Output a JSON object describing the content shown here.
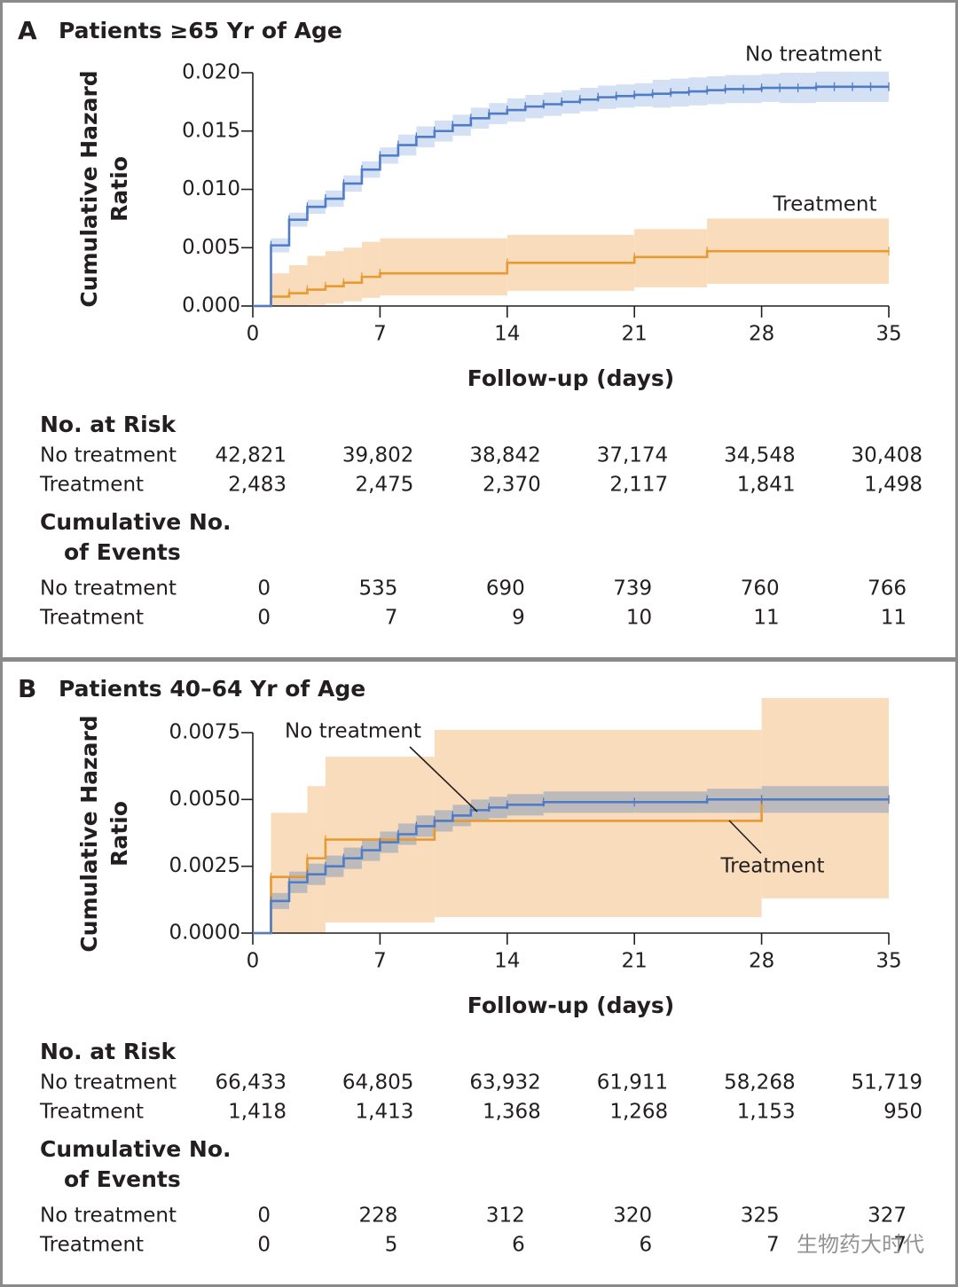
{
  "chart_data": [
    {
      "type": "step",
      "panel": "A",
      "title": "Patients ≥65 Yr of Age",
      "ylabel": [
        "Cumulative Hazard",
        "Ratio"
      ],
      "xlabel": "Follow-up (days)",
      "xlim": [
        0,
        35
      ],
      "xticks": [
        0,
        7,
        14,
        21,
        28,
        35
      ],
      "ylim": [
        0,
        0.02
      ],
      "yticks": [
        {
          "value": 0,
          "label": "0.000"
        },
        0.005,
        {
          "value": 0.01,
          "label": "0.010"
        },
        0.015,
        {
          "value": 0.02,
          "label": "0.020"
        }
      ],
      "series": [
        {
          "name": "No treatment",
          "color": "#4f7cc4",
          "band_color": "#c5d5ef",
          "x": [
            0,
            1,
            2,
            3,
            4,
            5,
            6,
            7,
            8,
            9,
            10,
            11,
            12,
            13,
            14,
            15,
            16,
            17,
            18,
            19,
            20,
            21,
            22,
            23,
            24,
            25,
            26,
            27,
            28,
            29,
            30,
            31,
            32,
            33,
            34,
            35
          ],
          "values": [
            0,
            0.0052,
            0.0074,
            0.0085,
            0.0092,
            0.0105,
            0.0117,
            0.0129,
            0.0138,
            0.0145,
            0.015,
            0.0155,
            0.0161,
            0.0165,
            0.0168,
            0.0171,
            0.0173,
            0.0175,
            0.0177,
            0.0179,
            0.018,
            0.0181,
            0.0182,
            0.0183,
            0.0184,
            0.0185,
            0.0186,
            0.0186,
            0.0187,
            0.0187,
            0.0187,
            0.0188,
            0.0188,
            0.0188,
            0.0188,
            0.0188
          ],
          "lower": [
            0,
            0.0046,
            0.0068,
            0.0079,
            0.0085,
            0.0098,
            0.011,
            0.0122,
            0.0129,
            0.0136,
            0.0141,
            0.0146,
            0.0152,
            0.0156,
            0.0158,
            0.0161,
            0.0163,
            0.0165,
            0.0167,
            0.0169,
            0.017,
            0.0171,
            0.017,
            0.0171,
            0.0172,
            0.0173,
            0.0174,
            0.0174,
            0.0175,
            0.0174,
            0.0174,
            0.0175,
            0.0175,
            0.0175,
            0.0175,
            0.0175
          ],
          "upper": [
            0,
            0.0058,
            0.008,
            0.0091,
            0.0099,
            0.0112,
            0.0124,
            0.0136,
            0.0147,
            0.0154,
            0.0159,
            0.0164,
            0.017,
            0.0174,
            0.0178,
            0.0181,
            0.0183,
            0.0185,
            0.0187,
            0.0189,
            0.019,
            0.0191,
            0.0194,
            0.0195,
            0.0196,
            0.0197,
            0.0198,
            0.0198,
            0.0199,
            0.02,
            0.02,
            0.0201,
            0.0201,
            0.0201,
            0.0201,
            0.0201
          ]
        },
        {
          "name": "Treatment",
          "color": "#e89a32",
          "band_color": "#f9dcbc",
          "x": [
            0,
            1,
            2,
            3,
            4,
            5,
            6,
            7,
            14,
            21,
            25,
            35
          ],
          "values": [
            0,
            0.0008,
            0.0011,
            0.0014,
            0.0017,
            0.002,
            0.0025,
            0.0028,
            0.0037,
            0.0042,
            0.0047,
            0.0047
          ],
          "lower": [
            0,
            0,
            0,
            0.0001,
            0.0002,
            0.0004,
            0.0007,
            0.0009,
            0.0013,
            0.0016,
            0.0019,
            0.0019
          ],
          "upper": [
            0,
            0.0028,
            0.0035,
            0.0043,
            0.0047,
            0.005,
            0.0055,
            0.0058,
            0.0061,
            0.0066,
            0.0075,
            0.0075
          ]
        }
      ],
      "risk_table": {
        "title": "No. at Risk",
        "rows": [
          {
            "name": "No treatment",
            "values": [
              "42,821",
              "39,802",
              "38,842",
              "37,174",
              "34,548",
              "30,408"
            ]
          },
          {
            "name": "Treatment",
            "values": [
              "2,483",
              "2,475",
              "2,370",
              "2,117",
              "1,841",
              "1,498"
            ]
          }
        ]
      },
      "events_table": {
        "title": [
          "Cumulative No.",
          "of Events"
        ],
        "rows": [
          {
            "name": "No treatment",
            "values": [
              "0",
              "535",
              "690",
              "739",
              "760",
              "766"
            ]
          },
          {
            "name": "Treatment",
            "values": [
              "0",
              "7",
              "9",
              "10",
              "11",
              "11"
            ]
          }
        ]
      }
    },
    {
      "type": "step",
      "panel": "B",
      "title": "Patients 40–64 Yr of Age",
      "ylabel": [
        "Cumulative Hazard",
        "Ratio"
      ],
      "xlabel": "Follow-up (days)",
      "xlim": [
        0,
        35
      ],
      "xticks": [
        0,
        7,
        14,
        21,
        28,
        35
      ],
      "ylim": [
        0,
        0.0075
      ],
      "yticks": [
        {
          "value": 0,
          "label": "0.0000"
        },
        0.0025,
        {
          "value": 0.005,
          "label": "0.0050"
        },
        0.0075
      ],
      "series": [
        {
          "name": "No treatment",
          "color": "#4f7cc4",
          "band_color": "#a8afbc",
          "x": [
            0,
            1,
            2,
            3,
            4,
            5,
            6,
            7,
            8,
            9,
            10,
            11,
            12,
            13,
            14,
            16,
            21,
            25,
            28,
            35
          ],
          "values": [
            0,
            0.0012,
            0.0019,
            0.0022,
            0.0025,
            0.0028,
            0.0031,
            0.0034,
            0.0037,
            0.004,
            0.0042,
            0.0044,
            0.0046,
            0.0047,
            0.0048,
            0.0049,
            0.0049,
            0.005,
            0.005,
            0.005
          ],
          "lower": [
            0,
            0.0009,
            0.0015,
            0.0018,
            0.0021,
            0.0024,
            0.0027,
            0.003,
            0.0033,
            0.0036,
            0.0038,
            0.004,
            0.0042,
            0.0043,
            0.0044,
            0.0045,
            0.0045,
            0.0045,
            0.0045,
            0.0045
          ],
          "upper": [
            0,
            0.0015,
            0.0023,
            0.0026,
            0.0029,
            0.0032,
            0.0035,
            0.0038,
            0.0041,
            0.0044,
            0.0046,
            0.0048,
            0.005,
            0.0051,
            0.0052,
            0.0053,
            0.0053,
            0.0054,
            0.0055,
            0.0055
          ]
        },
        {
          "name": "Treatment",
          "color": "#e89a32",
          "band_color": "#f9dcbc",
          "x": [
            0,
            1,
            3,
            4,
            10,
            28,
            35
          ],
          "values": [
            0,
            0.0021,
            0.0028,
            0.0035,
            0.0042,
            0.005,
            0.005
          ],
          "lower": [
            0,
            0,
            0,
            0.0004,
            0.0006,
            0.0013,
            0.0013
          ],
          "upper": [
            0,
            0.0045,
            0.0055,
            0.0066,
            0.0076,
            0.0088,
            0.0088
          ]
        }
      ],
      "risk_table": {
        "title": "No. at Risk",
        "rows": [
          {
            "name": "No treatment",
            "values": [
              "66,433",
              "64,805",
              "63,932",
              "61,911",
              "58,268",
              "51,719"
            ]
          },
          {
            "name": "Treatment",
            "values": [
              "1,418",
              "1,413",
              "1,368",
              "1,268",
              "1,153",
              "950"
            ]
          }
        ]
      },
      "events_table": {
        "title": [
          "Cumulative No.",
          "of Events"
        ],
        "rows": [
          {
            "name": "No treatment",
            "values": [
              "0",
              "228",
              "312",
              "320",
              "325",
              "327"
            ]
          },
          {
            "name": "Treatment",
            "values": [
              "0",
              "5",
              "6",
              "6",
              "7",
              "7"
            ]
          }
        ]
      }
    }
  ],
  "watermark": "生物药大时代"
}
